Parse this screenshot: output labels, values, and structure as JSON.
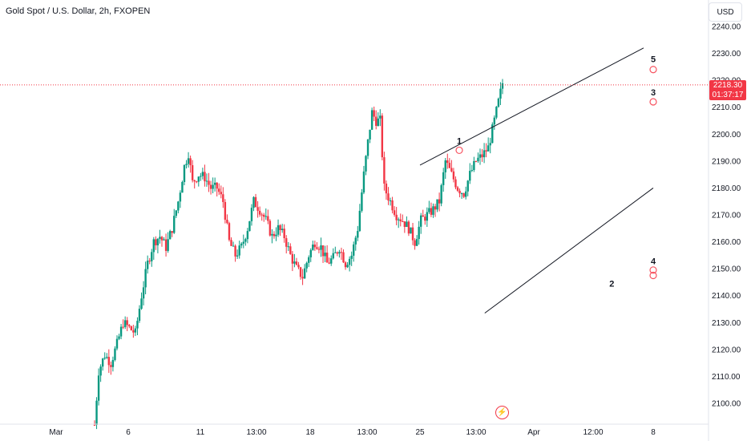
{
  "header": {
    "title": "Gold Spot / U.S. Dollar, 2h, FXOPEN"
  },
  "currency_button": "USD",
  "price_tag": {
    "price": "2218.30",
    "countdown": "01:37:17",
    "color": "#f23645"
  },
  "colors": {
    "up": "#089981",
    "down": "#f23645",
    "line": "#131722",
    "last_price": "#f23645"
  },
  "icons": {
    "flash": "flash-icon"
  },
  "chart_data": {
    "type": "candlestick",
    "title": "Gold Spot / U.S. Dollar, 2h, FXOPEN",
    "y_ticks": [
      2100,
      2110,
      2120,
      2130,
      2140,
      2150,
      2160,
      2170,
      2180,
      2190,
      2200,
      2210,
      2220,
      2230,
      2240
    ],
    "ylim": [
      2093,
      2245
    ],
    "x_ticks": [
      "Mar",
      "6",
      "11",
      "13:00",
      "18",
      "13:00",
      "25",
      "13:00",
      "Apr",
      "12:00",
      "8"
    ],
    "last_price": 2218.3,
    "grid": false,
    "price_path": [
      [
        0,
        2092
      ],
      [
        2,
        2112
      ],
      [
        5,
        2118
      ],
      [
        8,
        2115
      ],
      [
        11,
        2122
      ],
      [
        14,
        2130
      ],
      [
        17,
        2128
      ],
      [
        20,
        2126
      ],
      [
        23,
        2140
      ],
      [
        26,
        2152
      ],
      [
        29,
        2160
      ],
      [
        32,
        2162
      ],
      [
        35,
        2158
      ],
      [
        38,
        2165
      ],
      [
        41,
        2175
      ],
      [
        44,
        2188
      ],
      [
        46,
        2193
      ],
      [
        48,
        2182
      ],
      [
        51,
        2185
      ],
      [
        54,
        2184
      ],
      [
        57,
        2180
      ],
      [
        60,
        2180
      ],
      [
        63,
        2175
      ],
      [
        66,
        2160
      ],
      [
        69,
        2155
      ],
      [
        72,
        2158
      ],
      [
        75,
        2165
      ],
      [
        78,
        2175
      ],
      [
        81,
        2172
      ],
      [
        84,
        2168
      ],
      [
        87,
        2162
      ],
      [
        90,
        2165
      ],
      [
        93,
        2162
      ],
      [
        96,
        2155
      ],
      [
        99,
        2150
      ],
      [
        102,
        2147
      ],
      [
        105,
        2155
      ],
      [
        108,
        2160
      ],
      [
        111,
        2158
      ],
      [
        114,
        2152
      ],
      [
        117,
        2154
      ],
      [
        120,
        2158
      ],
      [
        123,
        2152
      ],
      [
        126,
        2155
      ],
      [
        129,
        2165
      ],
      [
        132,
        2185
      ],
      [
        134,
        2197
      ],
      [
        136,
        2208
      ],
      [
        138,
        2205
      ],
      [
        140,
        2205
      ],
      [
        142,
        2180
      ],
      [
        145,
        2175
      ],
      [
        148,
        2170
      ],
      [
        151,
        2168
      ],
      [
        154,
        2165
      ],
      [
        157,
        2160
      ],
      [
        160,
        2168
      ],
      [
        163,
        2170
      ],
      [
        166,
        2172
      ],
      [
        169,
        2175
      ],
      [
        172,
        2190
      ],
      [
        175,
        2185
      ],
      [
        178,
        2180
      ],
      [
        181,
        2178
      ],
      [
        184,
        2185
      ],
      [
        187,
        2190
      ],
      [
        190,
        2192
      ],
      [
        193,
        2195
      ],
      [
        196,
        2205
      ],
      [
        198,
        2212
      ],
      [
        200,
        2219
      ]
    ],
    "trendlines": [
      {
        "name": "upper-channel",
        "points": [
          [
            6.0,
            2188.5
          ],
          [
            9.84,
            2232.0
          ]
        ]
      },
      {
        "name": "lower-channel",
        "points": [
          [
            7.15,
            2133.5
          ],
          [
            12.22,
            2180.0
          ]
        ]
      }
    ],
    "wave_labels": [
      {
        "label": "1",
        "x": 6.7,
        "y": 2194.0
      },
      {
        "label": "2",
        "x": 9.55,
        "y": 2147.5
      },
      {
        "label": "3",
        "x": 11.05,
        "y": 2212.0
      },
      {
        "label": "4",
        "x": 12.35,
        "y": 2155.8
      },
      {
        "label": "5",
        "x": 13.62,
        "y": 2224.3
      }
    ],
    "markers": [
      {
        "x": 6.7,
        "y": 2194.0
      },
      {
        "x": 10.05,
        "y": 2147.5
      },
      {
        "x": 10.5,
        "y": 2149.5
      },
      {
        "x": 11.05,
        "y": 2212.0
      },
      {
        "x": 13.62,
        "y": 2224.0
      }
    ]
  }
}
